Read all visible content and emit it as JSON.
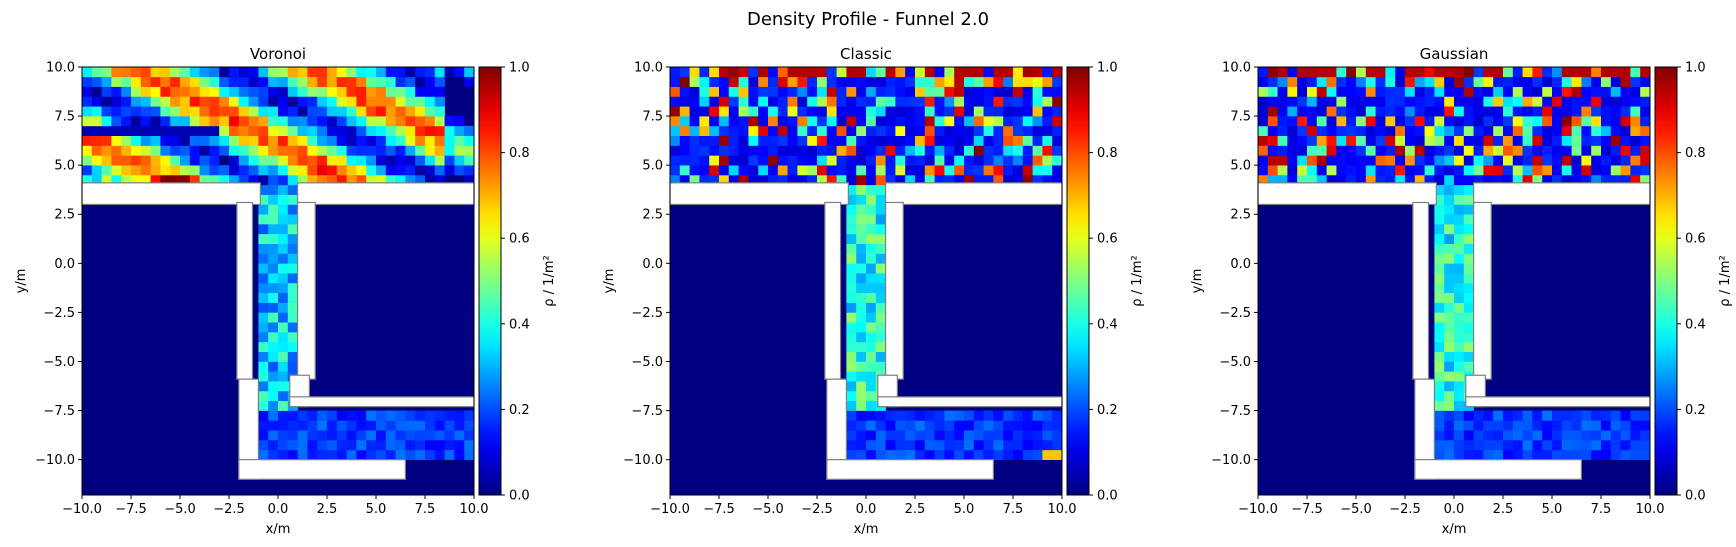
{
  "figure": {
    "title": "Density Profile - Funnel  2.0"
  },
  "colormap": "jet",
  "chart_data": [
    {
      "type": "heatmap",
      "title": "Voronoi",
      "xlabel": "x/m",
      "ylabel": "y/m",
      "xlim": [
        -10.0,
        10.0
      ],
      "ylim": [
        -11.8,
        10.0
      ],
      "xticks": [
        "−10.0",
        "−7.5",
        "−5.0",
        "−2.5",
        "0.0",
        "2.5",
        "5.0",
        "7.5",
        "10.0"
      ],
      "yticks": [
        "−10.0",
        "−7.5",
        "−5.0",
        "−2.5",
        "0.0",
        "2.5",
        "5.0",
        "7.5",
        "10.0"
      ],
      "colorbar": {
        "label": "ρ / 1/m²",
        "range": [
          0.0,
          1.0
        ],
        "ticks": [
          "0.0",
          "0.2",
          "0.4",
          "0.6",
          "0.8",
          "1.0"
        ]
      },
      "pattern": "smooth",
      "funnel_corridor_density": 0.3
    },
    {
      "type": "heatmap",
      "title": "Classic",
      "xlabel": "x/m",
      "ylabel": "y/m",
      "xlim": [
        -10.0,
        10.0
      ],
      "ylim": [
        -11.8,
        10.0
      ],
      "xticks": [
        "−10.0",
        "−7.5",
        "−5.0",
        "−2.5",
        "0.0",
        "2.5",
        "5.0",
        "7.5",
        "10.0"
      ],
      "yticks": [
        "−10.0",
        "−7.5",
        "−5.0",
        "−2.5",
        "0.0",
        "2.5",
        "5.0",
        "7.5",
        "10.0"
      ],
      "colorbar": {
        "label": "ρ / 1/m²",
        "range": [
          0.0,
          1.0
        ],
        "ticks": [
          "0.0",
          "0.2",
          "0.4",
          "0.6",
          "0.8",
          "1.0"
        ]
      },
      "pattern": "noisy",
      "funnel_corridor_density": 0.4
    },
    {
      "type": "heatmap",
      "title": "Gaussian",
      "xlabel": "x/m",
      "ylabel": "y/m",
      "xlim": [
        -10.0,
        10.0
      ],
      "ylim": [
        -11.8,
        10.0
      ],
      "xticks": [
        "−10.0",
        "−7.5",
        "−5.0",
        "−2.5",
        "0.0",
        "2.5",
        "5.0",
        "7.5",
        "10.0"
      ],
      "yticks": [
        "−10.0",
        "−7.5",
        "−5.0",
        "−2.5",
        "0.0",
        "2.5",
        "5.0",
        "7.5",
        "10.0"
      ],
      "colorbar": {
        "label": "ρ / 1/m²",
        "range": [
          0.0,
          1.0
        ],
        "ticks": [
          "0.0",
          "0.2",
          "0.4",
          "0.6",
          "0.8",
          "1.0"
        ]
      },
      "pattern": "noisy",
      "funnel_corridor_density": 0.35
    }
  ]
}
